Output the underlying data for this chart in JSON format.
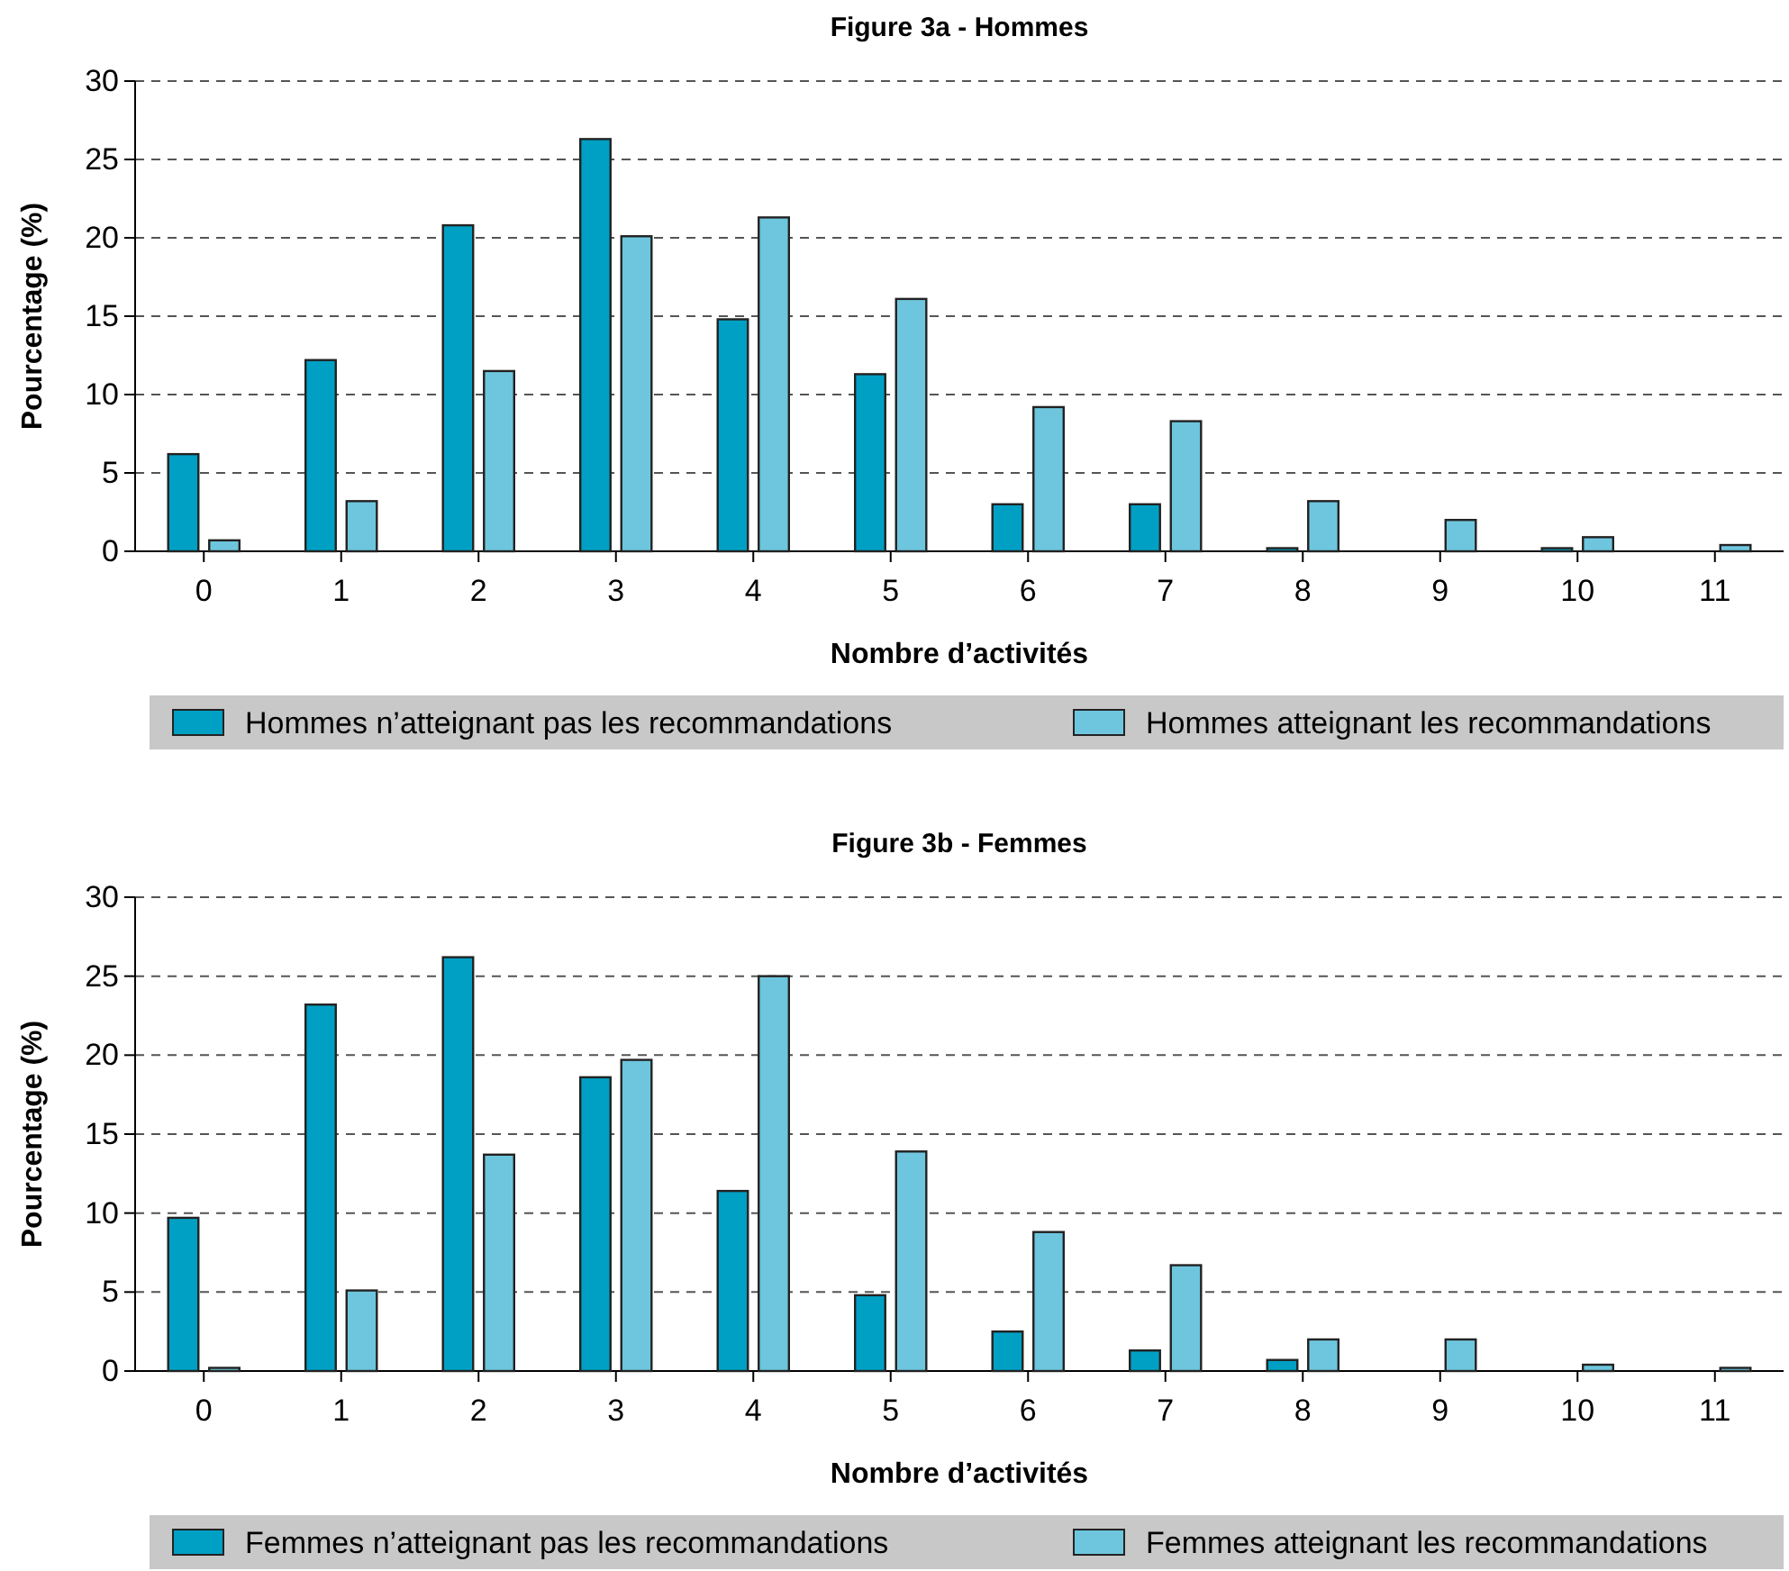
{
  "chart_data": [
    {
      "type": "bar",
      "title": "Figure 3a - Hommes",
      "xlabel": "Nombre d’activités",
      "ylabel": "Pourcentage (%)",
      "categories": [
        "0",
        "1",
        "2",
        "3",
        "4",
        "5",
        "6",
        "7",
        "8",
        "9",
        "10",
        "11"
      ],
      "series": [
        {
          "name": "Hommes n’atteignant pas les recommandations",
          "color": "#00a0c4",
          "values": [
            6.2,
            12.2,
            20.8,
            26.3,
            14.8,
            11.3,
            3.0,
            3.0,
            0.2,
            0,
            0.2,
            0
          ]
        },
        {
          "name": "Hommes atteignant les recommandations",
          "color": "#6ec6de",
          "values": [
            0.7,
            3.2,
            11.5,
            20.1,
            21.3,
            16.1,
            9.2,
            8.3,
            3.2,
            2.0,
            0.9,
            0.4
          ]
        }
      ],
      "ylim": [
        0,
        30
      ],
      "yticks": [
        0,
        5,
        10,
        15,
        20,
        25,
        30
      ],
      "grid": "y",
      "legend": "bottom"
    },
    {
      "type": "bar",
      "title": "Figure 3b - Femmes",
      "xlabel": "Nombre d’activités",
      "ylabel": "Pourcentage (%)",
      "categories": [
        "0",
        "1",
        "2",
        "3",
        "4",
        "5",
        "6",
        "7",
        "8",
        "9",
        "10",
        "11"
      ],
      "series": [
        {
          "name": "Femmes n’atteignant pas les recommandations",
          "color": "#00a0c4",
          "values": [
            9.7,
            23.2,
            26.2,
            18.6,
            11.4,
            4.8,
            2.5,
            1.3,
            0.7,
            0,
            0,
            0
          ]
        },
        {
          "name": "Femmes atteignant les recommandations",
          "color": "#6ec6de",
          "values": [
            0.2,
            5.1,
            13.7,
            19.7,
            25.0,
            13.9,
            8.8,
            6.7,
            2.0,
            2.0,
            0.4,
            0.2
          ]
        }
      ],
      "ylim": [
        0,
        30
      ],
      "yticks": [
        0,
        5,
        10,
        15,
        20,
        25,
        30
      ],
      "grid": "y",
      "legend": "bottom"
    }
  ]
}
